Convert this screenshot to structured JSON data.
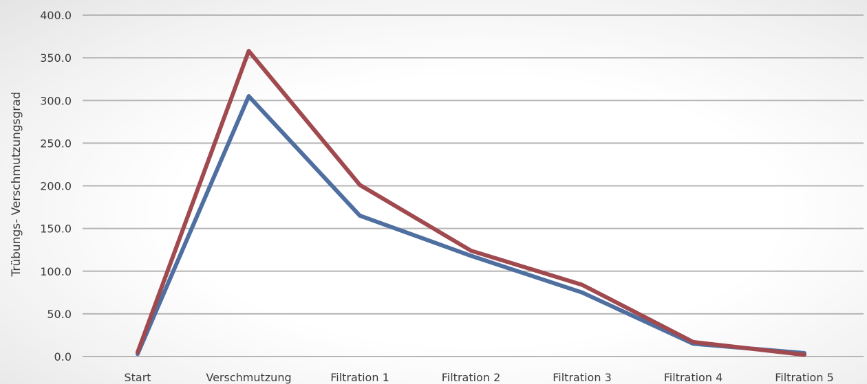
{
  "chart_data": {
    "type": "line",
    "title": "",
    "xlabel": "",
    "ylabel": "Trübungs- Verschmutzungsgrad",
    "categories": [
      "Start",
      "Verschmutzung",
      "Filtration 1",
      "Filtration 2",
      "Filtration 3",
      "Filtration 4",
      "Filtration 5"
    ],
    "ylim": [
      0,
      400
    ],
    "yticks": [
      "0.0",
      "50.0",
      "100.0",
      "150.0",
      "200.0",
      "250.0",
      "300.0",
      "350.0",
      "400.0"
    ],
    "grid": true,
    "legend": "none",
    "series": [
      {
        "color": "#4f6fa0",
        "values": [
          3,
          305,
          165,
          118,
          75,
          15,
          4
        ]
      },
      {
        "color": "#a04a4f",
        "values": [
          5,
          358,
          201,
          124,
          84,
          17,
          2
        ]
      }
    ]
  }
}
